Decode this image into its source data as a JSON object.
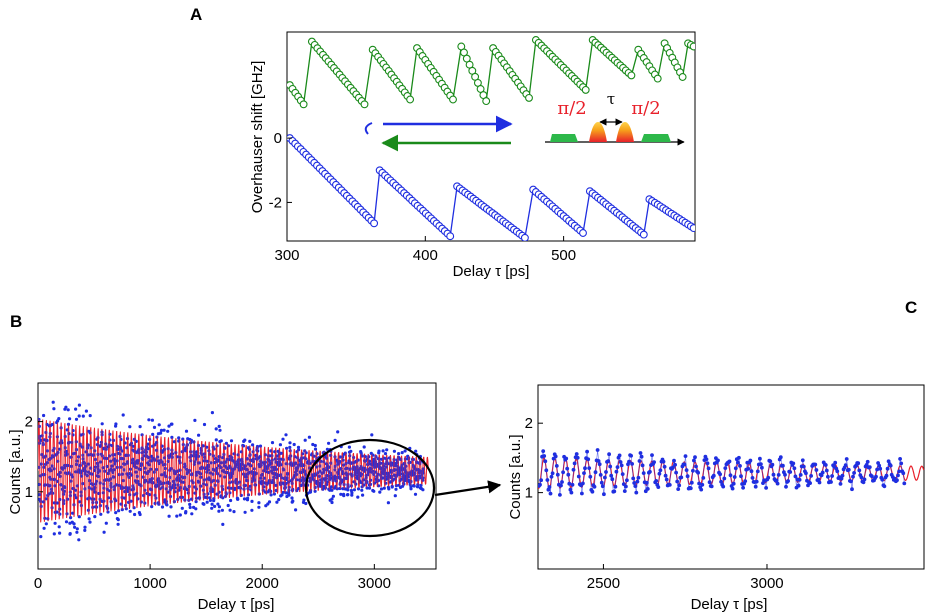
{
  "panels": {
    "a_letter": "A",
    "b_letter": "B",
    "c_letter": "C"
  },
  "colors": {
    "green": "#1a8a1a",
    "blue": "#1f2ee0",
    "red": "#e8202a",
    "pulse_green": "#2db84a",
    "pulse_orange": "#f7a21b"
  },
  "inset": {
    "pulse_left": "π/2",
    "pulse_right": "π/2",
    "tau": "τ"
  },
  "chart_data": [
    {
      "id": "A",
      "type": "scatter",
      "xlabel": "Delay τ [ps]",
      "ylabel": "Overhauser shift [GHz]",
      "xlim": [
        300,
        595
      ],
      "ylim": [
        -3.2,
        3.3
      ],
      "xticks": [
        "300",
        "400",
        "500"
      ],
      "xtick_values": [
        300,
        400,
        500
      ],
      "yticks": [
        "-2",
        "0"
      ],
      "ytick_values": [
        -2,
        0
      ],
      "series": [
        {
          "color": "green",
          "sawtooth": [
            {
              "x0": 302,
              "x1": 312,
              "y0": 1.65,
              "y1": 1.05
            },
            {
              "x0": 318,
              "x1": 356,
              "y0": 3.0,
              "y1": 1.05
            },
            {
              "x0": 362,
              "x1": 389,
              "y0": 2.75,
              "y1": 1.2
            },
            {
              "x0": 394,
              "x1": 420,
              "y0": 2.8,
              "y1": 1.2
            },
            {
              "x0": 426,
              "x1": 444,
              "y0": 2.85,
              "y1": 1.15
            },
            {
              "x0": 449,
              "x1": 475,
              "y0": 2.8,
              "y1": 1.25
            },
            {
              "x0": 480,
              "x1": 516,
              "y0": 3.05,
              "y1": 1.5
            },
            {
              "x0": 521,
              "x1": 549,
              "y0": 3.05,
              "y1": 1.95
            },
            {
              "x0": 554,
              "x1": 568,
              "y0": 2.75,
              "y1": 1.85
            },
            {
              "x0": 573,
              "x1": 586,
              "y0": 2.95,
              "y1": 1.9
            },
            {
              "x0": 590,
              "x1": 594,
              "y0": 2.95,
              "y1": 2.85
            }
          ]
        },
        {
          "color": "blue",
          "sawtooth": [
            {
              "x0": 302,
              "x1": 363,
              "y0": 0.0,
              "y1": -2.65
            },
            {
              "x0": 367,
              "x1": 418,
              "y0": -1.0,
              "y1": -3.05
            },
            {
              "x0": 423,
              "x1": 472,
              "y0": -1.5,
              "y1": -3.1
            },
            {
              "x0": 478,
              "x1": 514,
              "y0": -1.6,
              "y1": -2.95
            },
            {
              "x0": 519,
              "x1": 558,
              "y0": -1.65,
              "y1": -3.0
            },
            {
              "x0": 562,
              "x1": 594,
              "y0": -1.9,
              "y1": -2.8
            }
          ]
        }
      ],
      "annotations": {
        "blue_arrow_direction": "right",
        "green_arrow_direction": "left"
      }
    },
    {
      "id": "B",
      "type": "scatter",
      "xlabel": "Delay τ [ps]",
      "ylabel": "Counts [a.u.]",
      "xlim": [
        0,
        3550
      ],
      "ylim": [
        -0.1,
        2.55
      ],
      "xticks": [
        "0",
        "1000",
        "2000",
        "3000"
      ],
      "xtick_values": [
        0,
        1000,
        2000,
        3000
      ],
      "yticks": [
        "1",
        "2"
      ],
      "ytick_values": [
        1,
        2
      ],
      "fit": {
        "color": "red",
        "center": 1.3,
        "amp0": 0.75,
        "decay_ps": 2600,
        "period_ps": 33,
        "x_end": 3480
      },
      "data": {
        "color": "blue",
        "center": 1.28,
        "spread0": 1.25,
        "decay_ps": 2300,
        "x_end": 3440
      },
      "zoom_ellipse": {
        "x_from": 2450,
        "x_to": 3450,
        "y_from": 0.6,
        "y_to": 1.75
      }
    },
    {
      "id": "C",
      "type": "scatter",
      "xlabel": "Delay τ [ps]",
      "ylabel": "Counts [a.u.]",
      "xlim": [
        2300,
        3480
      ],
      "ylim": [
        -0.1,
        2.55
      ],
      "xticks": [
        "2500",
        "3000"
      ],
      "xtick_values": [
        2500,
        3000
      ],
      "yticks": [
        "1",
        "2"
      ],
      "ytick_values": [
        1,
        2
      ],
      "fit": {
        "color": "red",
        "center": 1.28,
        "amp0": 0.22,
        "decay_ps": 1500,
        "period_ps": 33,
        "x_end": 3480
      },
      "data": {
        "color": "blue",
        "center": 1.28,
        "amp0": 0.28,
        "decay_ps": 1500,
        "x_end": 3420
      }
    }
  ]
}
